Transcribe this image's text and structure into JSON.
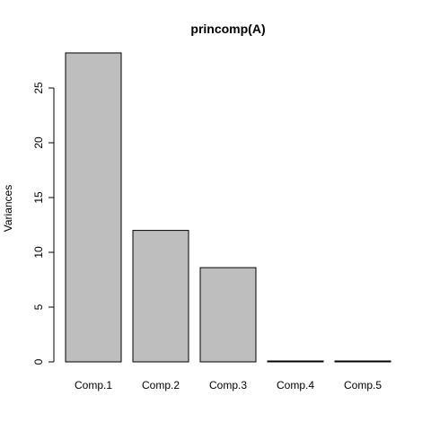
{
  "chart_data": {
    "type": "bar",
    "title": "princomp(A)",
    "ylabel": "Variances",
    "xlabel": "",
    "categories": [
      "Comp.1",
      "Comp.2",
      "Comp.3",
      "Comp.4",
      "Comp.5"
    ],
    "values": [
      28.2,
      12.0,
      8.6,
      0.05,
      0.03
    ],
    "ylim": [
      0,
      28.5
    ],
    "yticks": [
      "0",
      "5",
      "10",
      "15",
      "20",
      "25"
    ],
    "grid": false,
    "legend": "none",
    "bar_color": "#bebebe",
    "bar_border": "#000000"
  }
}
